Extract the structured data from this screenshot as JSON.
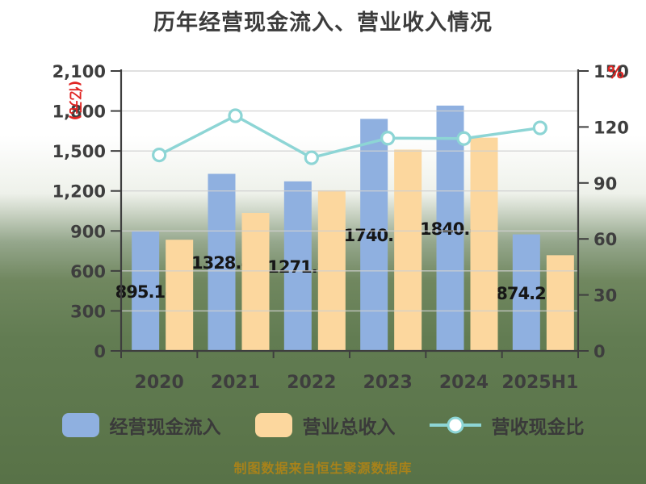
{
  "title": "历年经营现金流入、营业收入情况",
  "y_axis_left": {
    "unit": "(亿元)",
    "min": 0,
    "max": 2100,
    "step": 300,
    "tick_labels": [
      "0",
      "300",
      "600",
      "900",
      "1,200",
      "1,500",
      "1,800",
      "2,100"
    ]
  },
  "y_axis_right": {
    "unit": "%",
    "min": 0,
    "max": 150,
    "step": 30,
    "tick_labels": [
      "0",
      "30",
      "60",
      "90",
      "120",
      "150"
    ]
  },
  "chart_data": {
    "type": "bar",
    "title": "历年经营现金流入、营业收入情况",
    "categories": [
      "2020",
      "2021",
      "2022",
      "2023",
      "2024",
      "2025H1"
    ],
    "series": [
      {
        "name": "经营现金流入",
        "type": "bar",
        "axis": "left",
        "color": "#8fb0e0",
        "values": [
          895.14,
          1328.4,
          1271.9,
          1740.8,
          1840.4,
          874.22
        ],
        "data_labels": [
          "895.14",
          "1328.4",
          "1271.9",
          "1740.8",
          "1840.4",
          "874.22"
        ]
      },
      {
        "name": "营业总收入",
        "type": "bar",
        "axis": "left",
        "color": "#fcd79e",
        "values": [
          834,
          1035,
          1205,
          1510,
          1600,
          718
        ]
      },
      {
        "name": "营收现金比",
        "type": "line",
        "axis": "right",
        "color": "#8dd5d5",
        "marker": "white-circle",
        "values": [
          105,
          126,
          103.5,
          114,
          113.8,
          119.5
        ]
      }
    ],
    "ylim_left": [
      0,
      2100
    ],
    "ylim_right": [
      0,
      150
    ],
    "grid": true,
    "legend_position": "bottom"
  },
  "legend": {
    "items": [
      {
        "label": "经营现金流入",
        "type": "bar-swatch"
      },
      {
        "label": "营业总收入",
        "type": "bar-swatch"
      },
      {
        "label": "营收现金比",
        "type": "line-marker"
      }
    ]
  },
  "footer": {
    "source": "制图数据来自恒生聚源数据库"
  },
  "colors": {
    "bar_cash": "#8fb0e0",
    "bar_revenue": "#fcd79e",
    "ratio_line": "#8dd5d5",
    "axis_text": "#3e3e3e",
    "title_text": "#3c3c3c",
    "unit_text": "#e02422",
    "footer_text": "#a8821a",
    "gridline": "#d0d0d0",
    "background_top": "#ffffff",
    "background_bottom": "#587247"
  }
}
